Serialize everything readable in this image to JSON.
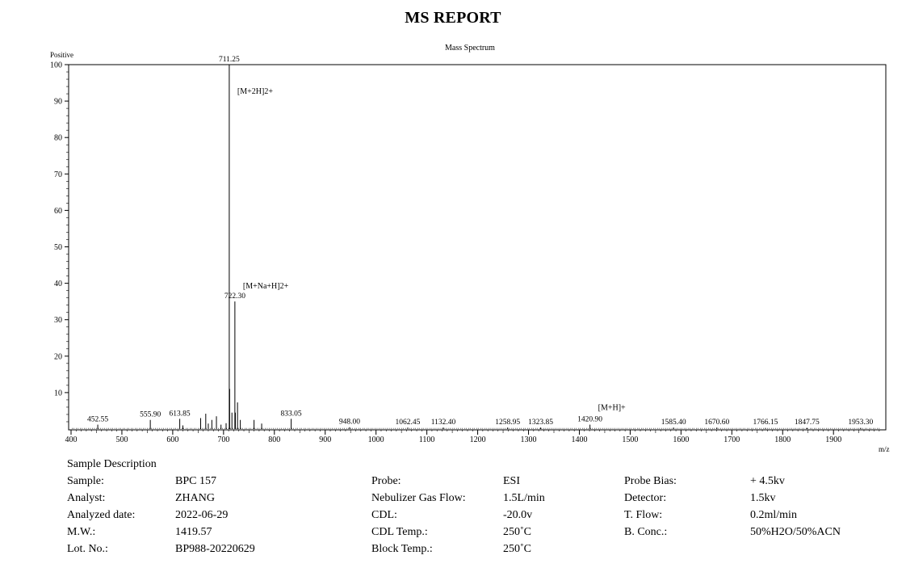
{
  "report_title": "MS REPORT",
  "chart_data": {
    "type": "line",
    "title": "Mass Spectrum",
    "ylabel": "Positive",
    "xlabel": "m/z",
    "xlim": [
      400,
      1995
    ],
    "ylim": [
      0,
      100
    ],
    "x_ticks": [
      "400",
      "500",
      "600",
      "700",
      "800",
      "900",
      "1000",
      "1100",
      "1200",
      "1300",
      "1400",
      "1500",
      "1600",
      "1700",
      "1800",
      "1900"
    ],
    "y_ticks": [
      "10",
      "20",
      "30",
      "40",
      "50",
      "60",
      "70",
      "80",
      "90",
      "100"
    ],
    "peaks": [
      {
        "mz": 452.55,
        "intensity": 1.2
      },
      {
        "mz": 555.9,
        "intensity": 2.5
      },
      {
        "mz": 613.85,
        "intensity": 2.8
      },
      {
        "mz": 620.0,
        "intensity": 1.0
      },
      {
        "mz": 655.0,
        "intensity": 3.0
      },
      {
        "mz": 665.0,
        "intensity": 4.2
      },
      {
        "mz": 670.0,
        "intensity": 1.5
      },
      {
        "mz": 677.0,
        "intensity": 2.5
      },
      {
        "mz": 686.0,
        "intensity": 3.5
      },
      {
        "mz": 695.0,
        "intensity": 1.2
      },
      {
        "mz": 705.0,
        "intensity": 1.6
      },
      {
        "mz": 711.25,
        "intensity": 100
      },
      {
        "mz": 712.0,
        "intensity": 11.0
      },
      {
        "mz": 716.5,
        "intensity": 4.5
      },
      {
        "mz": 722.3,
        "intensity": 35
      },
      {
        "mz": 723.3,
        "intensity": 4.5
      },
      {
        "mz": 727.5,
        "intensity": 7.3
      },
      {
        "mz": 733.0,
        "intensity": 2.5
      },
      {
        "mz": 760.0,
        "intensity": 2.5
      },
      {
        "mz": 775.0,
        "intensity": 1.5
      },
      {
        "mz": 833.05,
        "intensity": 2.8
      },
      {
        "mz": 948.0,
        "intensity": 0.5
      },
      {
        "mz": 1062.45,
        "intensity": 0.4
      },
      {
        "mz": 1132.4,
        "intensity": 0.4
      },
      {
        "mz": 1258.95,
        "intensity": 0.4
      },
      {
        "mz": 1323.85,
        "intensity": 0.4
      },
      {
        "mz": 1420.9,
        "intensity": 1.2
      },
      {
        "mz": 1585.4,
        "intensity": 0.4
      },
      {
        "mz": 1670.6,
        "intensity": 0.4
      },
      {
        "mz": 1766.15,
        "intensity": 0.3
      },
      {
        "mz": 1847.75,
        "intensity": 0.3
      },
      {
        "mz": 1953.3,
        "intensity": 0.3
      }
    ],
    "peak_labels": [
      {
        "mz": 452.55,
        "text": "452.55"
      },
      {
        "mz": 555.9,
        "text": "555.90"
      },
      {
        "mz": 613.85,
        "text": "613.85"
      },
      {
        "mz": 711.25,
        "text": "711.25"
      },
      {
        "mz": 722.3,
        "text": "722.30"
      },
      {
        "mz": 833.05,
        "text": "833.05"
      },
      {
        "mz": 948.0,
        "text": "948.00"
      },
      {
        "mz": 1062.45,
        "text": "1062.45"
      },
      {
        "mz": 1132.4,
        "text": "1132.40"
      },
      {
        "mz": 1258.95,
        "text": "1258.95"
      },
      {
        "mz": 1323.85,
        "text": "1323.85"
      },
      {
        "mz": 1420.9,
        "text": "1420.90"
      },
      {
        "mz": 1585.4,
        "text": "1585.40"
      },
      {
        "mz": 1670.6,
        "text": "1670.60"
      },
      {
        "mz": 1766.15,
        "text": "1766.15"
      },
      {
        "mz": 1847.75,
        "text": "1847.75"
      },
      {
        "mz": 1953.3,
        "text": "1953.30"
      }
    ],
    "annotations": [
      {
        "mz": 711.25,
        "text": "[M+2H]2+"
      },
      {
        "mz": 722.3,
        "text": "[M+Na+H]2+"
      },
      {
        "mz": 1420.9,
        "text": "[M+H]+"
      }
    ]
  },
  "sample_description": {
    "heading": "Sample Description",
    "columns": [
      [
        {
          "label": "Sample:",
          "value": "BPC 157"
        },
        {
          "label": "Analyst:",
          "value": "ZHANG"
        },
        {
          "label": "Analyzed date:",
          "value": "2022-06-29"
        },
        {
          "label": "M.W.:",
          "value": "1419.57"
        },
        {
          "label": "Lot. No.:",
          "value": "BP988-20220629"
        }
      ],
      [
        {
          "label": "Probe:",
          "value": "ESI"
        },
        {
          "label": "Nebulizer Gas Flow:",
          "value": "1.5L/min"
        },
        {
          "label": "CDL:",
          "value": "-20.0v"
        },
        {
          "label": "CDL Temp.:",
          "value": "250˚C"
        },
        {
          "label": "Block Temp.:",
          "value": "250˚C"
        }
      ],
      [
        {
          "label": "Probe Bias:",
          "value": "+ 4.5kv"
        },
        {
          "label": "Detector:",
          "value": "1.5kv"
        },
        {
          "label": "T. Flow:",
          "value": "0.2ml/min"
        },
        {
          "label": "B. Conc.:",
          "value": "50%H2O/50%ACN"
        }
      ]
    ]
  }
}
